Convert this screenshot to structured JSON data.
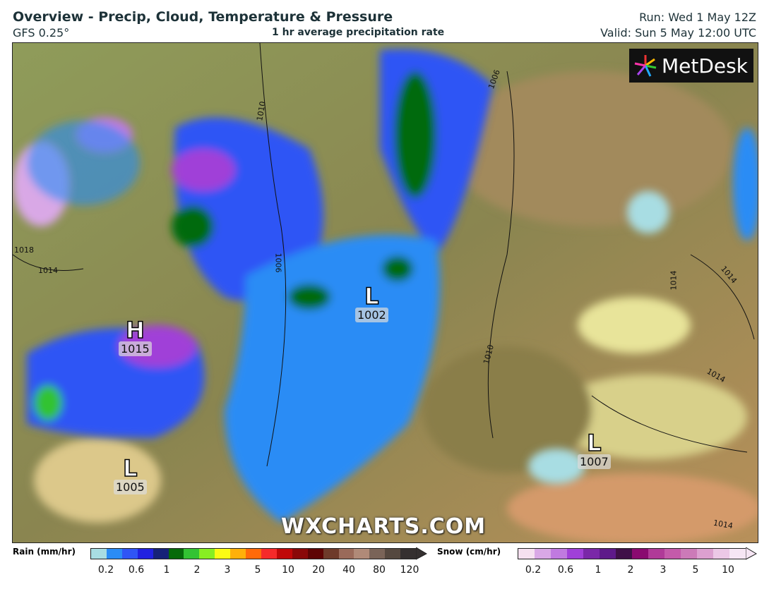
{
  "header": {
    "title": "Overview - Precip, Cloud, Temperature & Pressure",
    "model": "GFS 0.25°",
    "subtitle": "1 hr average precipitation rate",
    "run": "Run: Wed 1 May 12Z",
    "valid": "Valid: Sun 5 May 12:00 UTC"
  },
  "logo": "MetDesk",
  "watermark": "WXCHARTS.COM",
  "pressure_centers": [
    {
      "type": "H",
      "value": "1015"
    },
    {
      "type": "L",
      "value": "1002"
    },
    {
      "type": "L",
      "value": "1007"
    },
    {
      "type": "L",
      "value": "1005"
    }
  ],
  "isobar_labels": [
    "1010",
    "1006",
    "1006",
    "1018",
    "1014",
    "1010",
    "1014",
    "1014",
    "1014",
    "1014"
  ],
  "legend": {
    "rain": {
      "label": "Rain (mm/hr)",
      "ticks": [
        "0.2",
        "0.6",
        "1",
        "2",
        "3",
        "5",
        "10",
        "20",
        "40",
        "80",
        "120"
      ],
      "colors": [
        "#a8dde3",
        "#2a8cf5",
        "#2f55f5",
        "#2121e0",
        "#162278",
        "#066a0a",
        "#33c333",
        "#88ee22",
        "#fbfb14",
        "#ffb00a",
        "#ff6a0a",
        "#f52a2a",
        "#c00808",
        "#8a0808",
        "#5e0404",
        "#6e3a2a",
        "#9a6a5a",
        "#b08a78",
        "#7a6458",
        "#55483f",
        "#353030"
      ]
    },
    "snow": {
      "label": "Snow (cm/hr)",
      "ticks": [
        "0.2",
        "0.6",
        "1",
        "2",
        "3",
        "5",
        "10"
      ],
      "colors": [
        "#f5e0f0",
        "#d9a8e6",
        "#c07ae0",
        "#a040d8",
        "#7a28a8",
        "#5e1a8a",
        "#3f1048",
        "#8a0a70",
        "#b03a98",
        "#c45aaa",
        "#cc7ab8",
        "#dca0d0",
        "#ecc8e6",
        "#f6e6f4"
      ]
    }
  }
}
